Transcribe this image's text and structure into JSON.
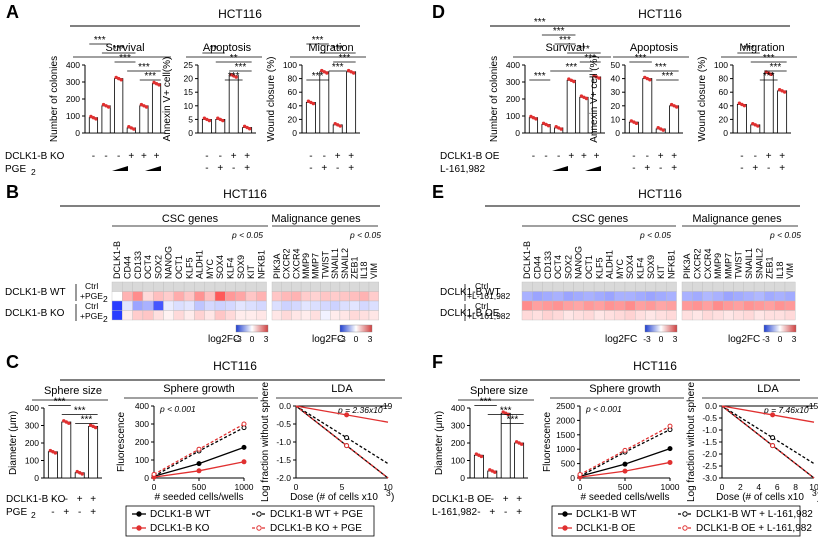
{
  "colors": {
    "black": "#000000",
    "red": "#e03030",
    "blue": "#1f3fd0",
    "neg": "#3a4fe0",
    "pos": "#d04040",
    "mid": "#ffffff",
    "na": "#d9d9d9"
  },
  "panels": {
    "A": "A",
    "B": "B",
    "C": "C",
    "D": "D",
    "E": "E",
    "F": "F"
  },
  "cell_line": "HCT116",
  "left": {
    "survival": {
      "title": "Survival",
      "ylabel": "Number of colonies",
      "yticks": [
        "0",
        "100",
        "200",
        "300",
        "400"
      ],
      "ylim": [
        0,
        400
      ],
      "values": [
        90,
        160,
        320,
        30,
        160,
        290
      ],
      "sig": [
        "***",
        "***",
        "***",
        "***",
        "***"
      ]
    },
    "apoptosis": {
      "title": "Apoptosis",
      "ylabel": "Annexin V+ cell(%)",
      "yticks": [
        "0",
        "5",
        "10",
        "15",
        "20",
        "25"
      ],
      "ylim": [
        0,
        25
      ],
      "values": [
        5,
        5,
        21,
        2
      ],
      "sig": [
        "**",
        "**",
        "***",
        "***"
      ]
    },
    "migration": {
      "title": "Migration",
      "ylabel": "Wound closure (%)",
      "yticks": [
        "0",
        "20",
        "40",
        "60",
        "80",
        "100"
      ],
      "ylim": [
        0,
        100
      ],
      "values": [
        45,
        90,
        12,
        90
      ],
      "sig": [
        "***",
        "***",
        "***",
        "***",
        "***"
      ]
    },
    "row1_label": "DCLK1-B KO",
    "row2_label": "PGE",
    "row2_sub": "2",
    "row1_survival": [
      "-",
      "-",
      "-",
      "+",
      "+",
      "+"
    ],
    "row1_four": [
      "-",
      "-",
      "+",
      "+"
    ],
    "row2_four": [
      "-",
      "+",
      "-",
      "+"
    ]
  },
  "right": {
    "survival": {
      "title": "Survival",
      "ylabel": "Number of colonies",
      "yticks": [
        "0",
        "100",
        "200",
        "300",
        "400"
      ],
      "ylim": [
        0,
        400
      ],
      "values": [
        90,
        50,
        30,
        310,
        210,
        330
      ],
      "sig": [
        "***",
        "***",
        "***",
        "***",
        "***",
        "***",
        "***"
      ]
    },
    "apoptosis": {
      "title": "Apoptosis",
      "ylabel": "Annexin V+ cell (%)",
      "yticks": [
        "0",
        "10",
        "20",
        "30",
        "40",
        "50"
      ],
      "ylim": [
        0,
        50
      ],
      "values": [
        8,
        40,
        3,
        20
      ],
      "sig": [
        "***",
        "***",
        "***"
      ]
    },
    "migration": {
      "title": "Migration",
      "ylabel": "Wound closure (%)",
      "yticks": [
        "0",
        "20",
        "40",
        "60",
        "80",
        "100"
      ],
      "ylim": [
        0,
        100
      ],
      "values": [
        42,
        12,
        88,
        62
      ],
      "sig": [
        "***",
        "***",
        "***",
        "***"
      ]
    },
    "row1_label": "DCLK1-B OE",
    "row2_label": "L-161,982",
    "row1_survival": [
      "-",
      "-",
      "-",
      "+",
      "+",
      "+"
    ],
    "row1_four": [
      "-",
      "-",
      "+",
      "+"
    ],
    "row2_four": [
      "-",
      "+",
      "-",
      "+"
    ]
  },
  "heat": {
    "csc_title": "CSC genes",
    "mal_title": "Malignance genes",
    "pval": "p < 0.05",
    "csc_genes": [
      "DCLK1-B",
      "CD44",
      "CD133",
      "OCT4",
      "SOX2",
      "NANOG",
      "OCT1",
      "KLF5",
      "ALDH1",
      "MYC",
      "SOX4",
      "KLF4",
      "SOX9",
      "KIT",
      "NFKB1"
    ],
    "mal_genes": [
      "PIK3A",
      "CXCR2",
      "CXCR4",
      "MMP9",
      "MMP7",
      "TWIST",
      "SNAIL1",
      "SNAIL2",
      "ZEB1",
      "IL18",
      "VIM"
    ],
    "left_rows": {
      "wt": "DCLK1-B WT",
      "ko": "DCLK1-B KO",
      "ctrl": "Ctrl",
      "pge": "+PGE",
      "sub": "2"
    },
    "right_rows": {
      "wt": "DCLK1-B WT",
      "oe": "DCLK1-B OE",
      "ctrl": "Ctrl",
      "l16": "+L-161,982"
    },
    "legend_label": "log2FC",
    "legend_ticks": [
      "-3",
      "0",
      "3"
    ],
    "left_csc": [
      [
        0,
        0,
        0,
        0,
        0,
        0,
        0,
        0,
        0,
        0,
        0,
        0,
        0,
        0,
        0
      ],
      [
        0,
        1.2,
        1.8,
        0.6,
        1.0,
        0.8,
        1.3,
        0.9,
        1.7,
        1.0,
        2.6,
        1.6,
        1.4,
        0.9,
        1.2
      ],
      [
        -3,
        -0.4,
        -1.4,
        -1.2,
        -2.6,
        -0.3,
        -0.5,
        -0.4,
        -0.9,
        -0.6,
        -0.7,
        -0.6,
        -0.4,
        -0.5,
        -0.6
      ],
      [
        -3,
        0.3,
        0.8,
        0.9,
        0.5,
        0.2,
        0.6,
        0.3,
        0.7,
        0.4,
        0.9,
        0.6,
        0.3,
        0.3,
        0.4
      ]
    ],
    "left_mal": [
      [
        0,
        0,
        0,
        0,
        0,
        0,
        0,
        0,
        0,
        0,
        0
      ],
      [
        0.9,
        1.1,
        1.2,
        0.8,
        0.7,
        0.9,
        0.8,
        0.9,
        1.0,
        1.2,
        0.8
      ],
      [
        -0.5,
        -0.7,
        -0.6,
        -0.4,
        -0.5,
        -0.6,
        -0.7,
        -0.5,
        -0.4,
        -0.6,
        -0.5
      ],
      [
        0.4,
        0.6,
        0.4,
        0.3,
        0.5,
        -0.2,
        0.3,
        0.4,
        0.6,
        0.5,
        0.4
      ]
    ],
    "right_csc": [
      [
        0,
        0,
        0,
        0,
        0,
        0,
        0,
        0,
        0,
        0,
        0,
        0,
        0,
        0,
        0
      ],
      [
        -1.2,
        -1.4,
        -1.3,
        -1.2,
        -1.4,
        -1.3,
        -1.2,
        -1.3,
        -1.4,
        -1.2,
        -1.2,
        -1.3,
        -1.4,
        -1.3,
        -1.2
      ],
      [
        1.8,
        1.5,
        1.6,
        1.7,
        1.5,
        1.4,
        1.6,
        1.5,
        1.7,
        1.6,
        1.8,
        1.5,
        1.6,
        1.4,
        1.5
      ],
      [
        0.6,
        0.5,
        0.7,
        0.6,
        0.4,
        0.5,
        0.6,
        0.4,
        0.5,
        0.6,
        0.7,
        0.5,
        0.4,
        0.5,
        0.6
      ]
    ],
    "right_mal": [
      [
        0,
        0,
        0,
        0,
        0,
        0,
        0,
        0,
        0,
        0,
        0
      ],
      [
        -1.2,
        -1.3,
        -1.1,
        -1.2,
        -1.4,
        -1.3,
        -1.2,
        -1.1,
        -1.3,
        -1.2,
        -1.3
      ],
      [
        1.6,
        1.7,
        1.5,
        1.8,
        1.6,
        1.5,
        1.7,
        1.6,
        1.5,
        1.7,
        1.6
      ],
      [
        0.5,
        0.4,
        0.6,
        0.5,
        0.4,
        0.5,
        0.6,
        0.4,
        0.5,
        0.5,
        0.6
      ]
    ]
  },
  "sphere": {
    "left": {
      "size_title": "Sphere size",
      "size_ylabel": "Diameter (μm)",
      "size_yticks": [
        "0",
        "100",
        "200",
        "300",
        "400"
      ],
      "size_values": [
        150,
        320,
        30,
        295
      ],
      "growth_title": "Sphere growth",
      "growth_ylabel": "Fluorescence",
      "growth_yticks": [
        "0",
        "100",
        "200",
        "300",
        "400"
      ],
      "growth_xticks": [
        "0",
        "500",
        "1000"
      ],
      "growth_xlabel": "# seeded cells/wells",
      "growth_p": "p < 0.001",
      "lda_title": "LDA",
      "lda_ylabel": "Log fraction without sphere",
      "lda_yticks": [
        "-2.0",
        "-1.5",
        "-1.0",
        "-0.5",
        "0.0"
      ],
      "lda_xticks": [
        "0",
        "5",
        "10"
      ],
      "lda_xlabel": "Dose (# of cells x10",
      "lda_xlabel_sup": "3",
      "lda_xlabel_end": ")",
      "lda_p": "p = 2.36x10",
      "lda_p_sup": "-19",
      "row1_label": "DCLK1-B KO",
      "row2_label": "PGE",
      "row2_sub": "2",
      "row1": [
        "-",
        "-",
        "+",
        "+"
      ],
      "row2": [
        "-",
        "+",
        "-",
        "+"
      ],
      "legend": [
        "DCLK1-B WT",
        "DCLK1-B WT + PGE",
        "DCLK1-B KO",
        "DCLK1-B KO + PGE"
      ]
    },
    "right": {
      "size_title": "Sphere size",
      "size_ylabel": "Diameter (μm)",
      "size_yticks": [
        "0",
        "100",
        "200",
        "300",
        "400"
      ],
      "size_values": [
        130,
        40,
        370,
        200
      ],
      "growth_title": "Sphere growth",
      "growth_ylabel": "Fluorescence",
      "growth_yticks": [
        "0",
        "500",
        "1000",
        "1500",
        "2000",
        "2500"
      ],
      "growth_xticks": [
        "0",
        "500",
        "1000"
      ],
      "growth_xlabel": "# seeded cells/wells",
      "growth_p": "p < 0.001",
      "lda_title": "LDA",
      "lda_ylabel": "Log fraction without sphere",
      "lda_yticks": [
        "-3.0",
        "-2.5",
        "-2.0",
        "-1.5",
        "-1.0",
        "-0.5",
        "0.0"
      ],
      "lda_xticks": [
        "0",
        "2",
        "4",
        "6",
        "8",
        "10"
      ],
      "lda_xlabel": "Dose (# of cells x10",
      "lda_xlabel_sup": "3",
      "lda_xlabel_end": ")",
      "lda_p": "p = 7.46x10",
      "lda_p_sup": "-15",
      "row1_label": "DCLK1-B OE",
      "row2_label": "L-161,982",
      "row1": [
        "-",
        "-",
        "+",
        "+"
      ],
      "row2": [
        "-",
        "+",
        "-",
        "+"
      ],
      "legend": [
        "DCLK1-B WT",
        "DCLK1-B WT + L-161,982",
        "DCLK1-B OE",
        "DCLK1-B OE + L-161,982"
      ]
    }
  },
  "chart_data": [
    {
      "type": "bar",
      "title": "Survival",
      "ylabel": "Number of colonies",
      "series": [
        {
          "name": "left",
          "values": [
            90,
            160,
            320,
            30,
            160,
            290
          ]
        },
        {
          "name": "right",
          "values": [
            90,
            50,
            30,
            310,
            210,
            330
          ]
        }
      ],
      "ylim": [
        0,
        400
      ]
    },
    {
      "type": "bar",
      "title": "Apoptosis",
      "ylabel": "Annexin V+ cell(%)",
      "series": [
        {
          "name": "left",
          "values": [
            5,
            5,
            21,
            2
          ]
        },
        {
          "name": "right",
          "values": [
            8,
            40,
            3,
            20
          ]
        }
      ]
    },
    {
      "type": "bar",
      "title": "Migration",
      "ylabel": "Wound closure (%)",
      "series": [
        {
          "name": "left",
          "values": [
            45,
            90,
            12,
            90
          ]
        },
        {
          "name": "right",
          "values": [
            42,
            12,
            88,
            62
          ]
        }
      ],
      "ylim": [
        0,
        100
      ]
    },
    {
      "type": "bar",
      "title": "Sphere size",
      "ylabel": "Diameter (μm)",
      "series": [
        {
          "name": "left",
          "values": [
            150,
            320,
            30,
            295
          ]
        },
        {
          "name": "right",
          "values": [
            130,
            40,
            370,
            200
          ]
        }
      ],
      "ylim": [
        0,
        400
      ]
    },
    {
      "type": "line",
      "title": "Sphere growth",
      "xlabel": "# seeded cells/wells",
      "ylabel": "Fluorescence",
      "x": [
        0,
        500,
        1000
      ],
      "series": [
        {
          "name": "DCLK1-B WT",
          "values": [
            10,
            80,
            170
          ]
        },
        {
          "name": "DCLK1-B WT + PGE2",
          "values": [
            10,
            150,
            280
          ]
        },
        {
          "name": "DCLK1-B KO",
          "values": [
            5,
            40,
            90
          ]
        },
        {
          "name": "DCLK1-B KO + PGE2",
          "values": [
            20,
            160,
            300
          ]
        }
      ]
    },
    {
      "type": "line",
      "title": "LDA",
      "xlabel": "Dose (# of cells x10^3)",
      "ylabel": "Log fraction without sphere",
      "x": [
        0,
        10
      ],
      "series": [
        {
          "name": "DCLK1-B WT",
          "values": [
            0,
            -2.0
          ]
        },
        {
          "name": "DCLK1-B WT + PGE2",
          "values": [
            0,
            -1.6
          ]
        },
        {
          "name": "DCLK1-B KO",
          "values": [
            0,
            -0.45
          ]
        },
        {
          "name": "DCLK1-B KO + PGE2",
          "values": [
            0,
            -2.0
          ]
        }
      ]
    }
  ]
}
